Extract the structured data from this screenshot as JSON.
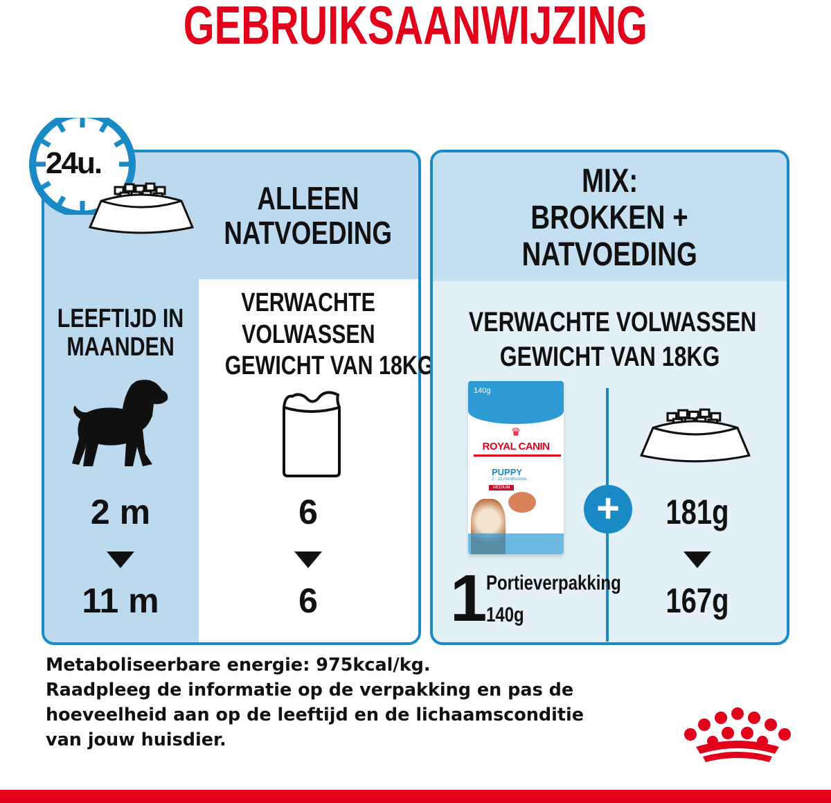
{
  "title": "GEBRUIKSAANWIJZING",
  "clock": {
    "label": "24u.",
    "icon": "clock-icon"
  },
  "left_panel": {
    "header": [
      "ALLEEN",
      "NATVOEDING"
    ],
    "age_label": [
      "LEEFTIJD IN",
      "MAANDEN"
    ],
    "weight_label": [
      "VERWACHTE",
      "VOLWASSEN",
      "GEWICHT VAN 18KG"
    ],
    "rows": [
      {
        "age": "2 m",
        "pouches": "6"
      },
      {
        "age": "11 m",
        "pouches": "6"
      }
    ]
  },
  "right_panel": {
    "header": [
      "MIX:",
      "BROKKEN +",
      "NATVOEDING"
    ],
    "weight_label": [
      "VERWACHTE VOLWASSEN",
      "GEWICHT VAN 18KG"
    ],
    "pouch_count": "1",
    "pouch_label": "Portieverpakking",
    "pouch_weight": "140g",
    "kibble": [
      "181g",
      "167g"
    ],
    "package": {
      "weight": "140g",
      "brand": "ROYAL CANIN",
      "product": "PUPPY",
      "age": "2 - 12 months/mois",
      "size": "MEDIUM"
    }
  },
  "footer": [
    "Metaboliseerbare energie: 975kcal/kg.",
    "Raadpleeg de informatie op de verpakking en pas de",
    "hoeveelheid aan op de leeftijd en de lichaamsconditie",
    "van jouw huisdier."
  ],
  "colors": {
    "brand_red": "#e2001a",
    "blue": "#1a8ac6",
    "light_blue": "#bcd9ee",
    "pale_blue": "#e4f0f8"
  }
}
